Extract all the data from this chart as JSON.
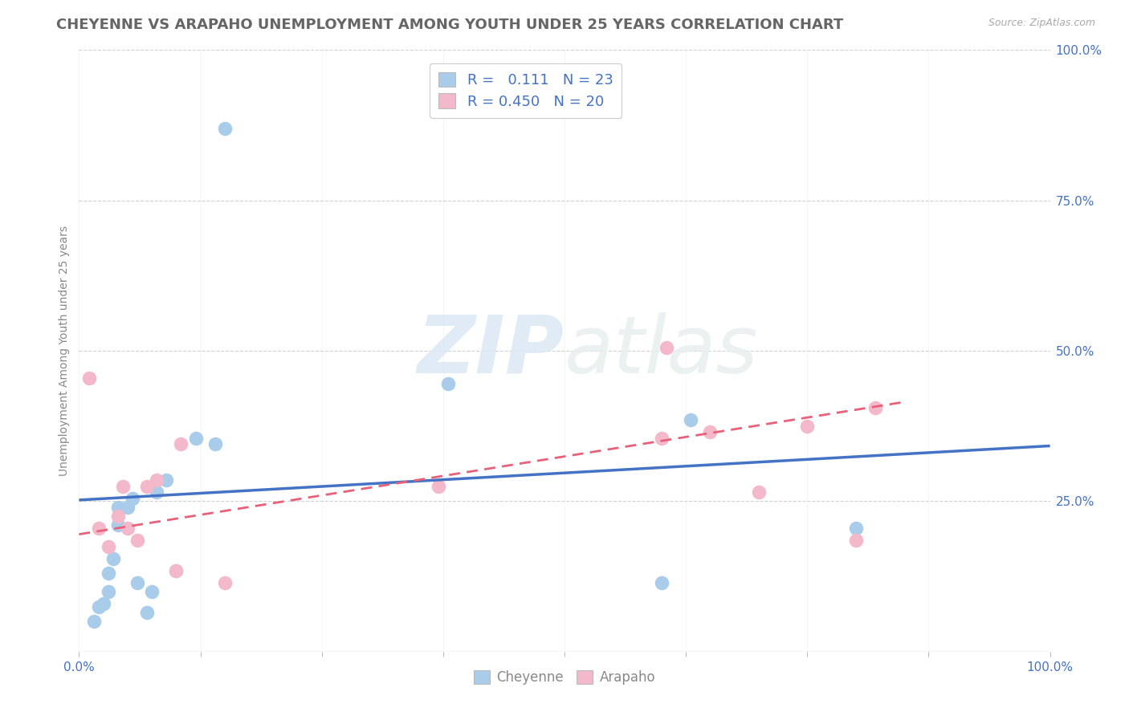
{
  "title": "CHEYENNE VS ARAPAHO UNEMPLOYMENT AMONG YOUTH UNDER 25 YEARS CORRELATION CHART",
  "source": "Source: ZipAtlas.com",
  "ylabel": "Unemployment Among Youth under 25 years",
  "xlim": [
    0.0,
    1.0
  ],
  "ylim": [
    0.0,
    1.0
  ],
  "cheyenne_color": "#a8ccea",
  "arapaho_color": "#f4b8cb",
  "cheyenne_line_color": "#4472c4",
  "arapaho_line_color": "#e8617a",
  "background_color": "#ffffff",
  "watermark_zip": "ZIP",
  "watermark_atlas": "atlas",
  "legend_text_color": "#4472c4",
  "legend_label_cheyenne": "Cheyenne",
  "legend_label_arapaho": "Arapaho",
  "cheyenne_x": [
    0.015,
    0.02,
    0.025,
    0.03,
    0.03,
    0.035,
    0.04,
    0.04,
    0.05,
    0.055,
    0.06,
    0.07,
    0.075,
    0.08,
    0.09,
    0.1,
    0.12,
    0.14,
    0.15,
    0.38,
    0.6,
    0.63,
    0.8
  ],
  "cheyenne_y": [
    0.05,
    0.075,
    0.08,
    0.1,
    0.13,
    0.155,
    0.21,
    0.24,
    0.24,
    0.255,
    0.115,
    0.065,
    0.1,
    0.265,
    0.285,
    0.135,
    0.355,
    0.345,
    0.87,
    0.445,
    0.115,
    0.385,
    0.205
  ],
  "arapaho_x": [
    0.01,
    0.02,
    0.03,
    0.04,
    0.045,
    0.05,
    0.06,
    0.07,
    0.08,
    0.1,
    0.105,
    0.15,
    0.37,
    0.6,
    0.605,
    0.65,
    0.7,
    0.75,
    0.8,
    0.82
  ],
  "arapaho_y": [
    0.455,
    0.205,
    0.175,
    0.225,
    0.275,
    0.205,
    0.185,
    0.275,
    0.285,
    0.135,
    0.345,
    0.115,
    0.275,
    0.355,
    0.505,
    0.365,
    0.265,
    0.375,
    0.185,
    0.405
  ],
  "cheyenne_line_x": [
    0.0,
    1.0
  ],
  "cheyenne_line_y": [
    0.252,
    0.342
  ],
  "arapaho_line_x": [
    0.0,
    0.85
  ],
  "arapaho_line_y": [
    0.195,
    0.415
  ],
  "marker_size": 160,
  "title_fontsize": 13,
  "axis_label_fontsize": 10,
  "tick_fontsize": 11,
  "grid_color": "#d0d0d0",
  "grid_style": "--"
}
